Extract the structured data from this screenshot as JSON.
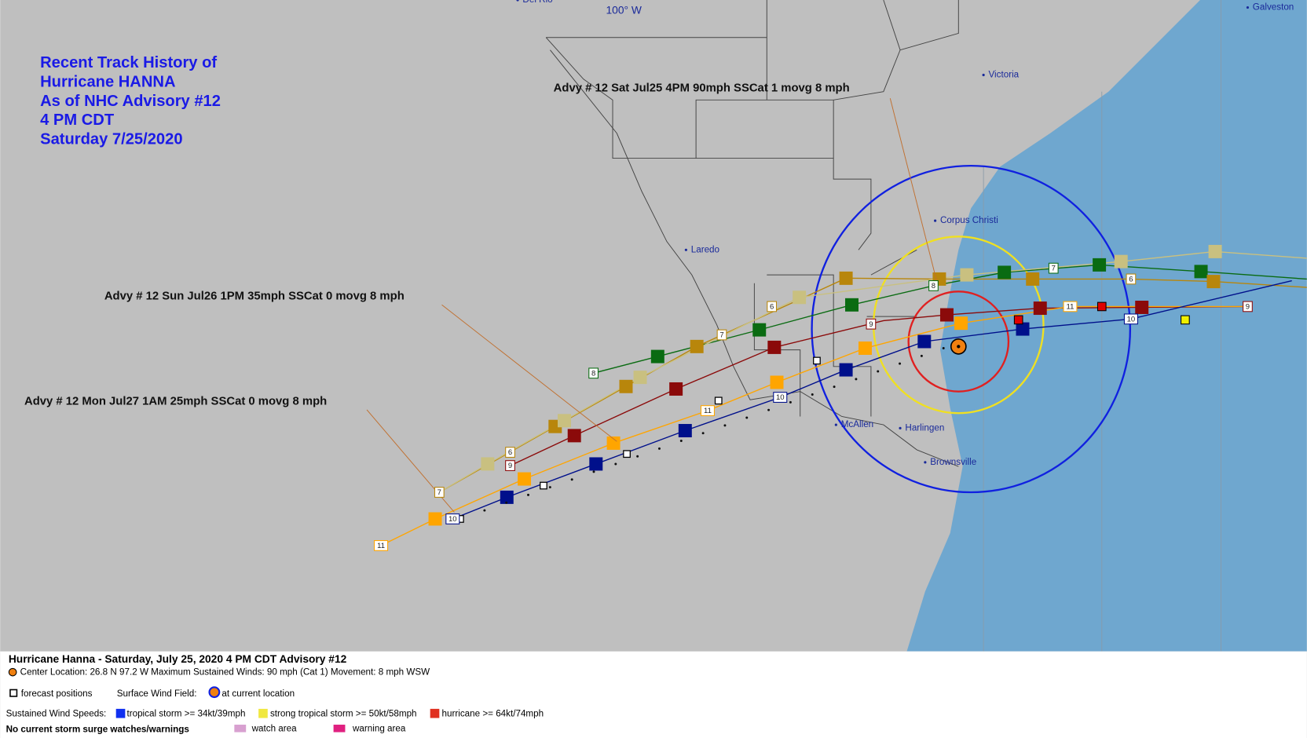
{
  "title_block": {
    "lines": [
      "Recent Track History of",
      "Hurricane HANNA",
      "As of NHC Advisory #12",
      "4 PM CDT",
      "Saturday 7/25/2020"
    ]
  },
  "longitude_label": "100° W",
  "annotations": [
    "Advy # 12 Sat Jul25 4PM  90mph SSCat 1 movg 8 mph",
    "Advy # 12 Sun Jul26 1PM  35mph SSCat 0 movg 8 mph",
    "Advy # 12 Mon Jul27 1AM  25mph SSCat 0 movg 8 mph"
  ],
  "cities": [
    "Del Rio",
    "Victoria",
    "Galveston",
    "Corpus Christi",
    "Laredo",
    "McAllen",
    "Harlingen",
    "Brownsville"
  ],
  "forecast_labels": [
    "6",
    "7",
    "8",
    "9",
    "10",
    "11",
    "6",
    "9",
    "7",
    "10",
    "11",
    "8",
    "7",
    "6",
    "11",
    "10",
    "9"
  ],
  "legend": {
    "heading": "Hurricane Hanna  -  Saturday, July 25, 2020  4 PM CDT   Advisory #12",
    "center": "Center Location: 26.8 N  97.2 W   Maximum Sustained Winds: 90 mph (Cat 1) Movement: 8 mph WSW",
    "forecast_positions": "forecast positions",
    "surface_wind_field": "Surface Wind Field:",
    "at_current_location": "at current location",
    "sustained_wind_speeds": "Sustained Wind Speeds:",
    "tropical_storm": "tropical storm >= 34kt/39mph",
    "strong_tropical_storm": "strong tropical storm >= 50kt/58mph",
    "hurricane": "hurricane >= 64kt/74mph",
    "surge": "No current storm surge watches/warnings",
    "watch_area": "watch area",
    "warning_area": "warning area"
  }
}
